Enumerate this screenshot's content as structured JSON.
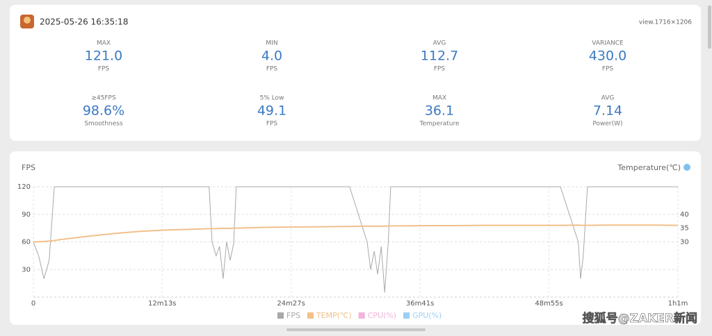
{
  "header": {
    "date": "2025-05-26 16:35:18",
    "view": "view.1716×1206"
  },
  "stats": [
    {
      "label": "MAX",
      "value": "121.0",
      "unit": "FPS"
    },
    {
      "label": "MIN",
      "value": "4.0",
      "unit": "FPS"
    },
    {
      "label": "AVG",
      "value": "112.7",
      "unit": "FPS"
    },
    {
      "label": "VARIANCE",
      "value": "430.0",
      "unit": "FPS"
    },
    {
      "label": "≥45FPS",
      "value": "98.6%",
      "unit": "Smoothness"
    },
    {
      "label": "5% Low",
      "value": "49.1",
      "unit": "FPS"
    },
    {
      "label": "MAX",
      "value": "36.1",
      "unit": "Temperature"
    },
    {
      "label": "AVG",
      "value": "7.14",
      "unit": "Power(W)"
    }
  ],
  "chart_data": {
    "type": "line",
    "y_label": "FPS",
    "y2_label": "Temperature(℃)",
    "x": [
      0,
      30,
      60,
      90,
      119,
      150,
      300,
      450,
      600,
      750,
      900,
      1000,
      1017,
      1040,
      1060,
      1080,
      1100,
      1120,
      1140,
      1155,
      1200,
      1350,
      1500,
      1650,
      1800,
      1900,
      1920,
      1940,
      1960,
      1980,
      2000,
      2020,
      2034,
      2100,
      2250,
      2400,
      2550,
      2700,
      2850,
      3000,
      3102,
      3115,
      3130,
      3154,
      3250,
      3400,
      3550,
      3669
    ],
    "xlim": [
      0,
      3669
    ],
    "xticks": [
      0,
      {
        "value": 733,
        "label": "12m13s"
      },
      {
        "value": 1467,
        "label": "24m27s"
      },
      {
        "value": 2201,
        "label": "36m41s"
      },
      {
        "value": 2935,
        "label": "48m55s"
      },
      {
        "value": 3669,
        "label": "1h1m"
      }
    ],
    "ylim": [
      0,
      120
    ],
    "yticks": [
      30,
      60,
      90,
      120
    ],
    "y2lim": [
      10,
      50
    ],
    "y2ticks": [
      30,
      35,
      40
    ],
    "grid": true,
    "series": [
      {
        "name": "FPS",
        "color": "#a8a8a8",
        "values": [
          60,
          45,
          20,
          40,
          120,
          120,
          120,
          120,
          120,
          120,
          120,
          120,
          60,
          45,
          55,
          20,
          60,
          40,
          58,
          120,
          120,
          120,
          120,
          120,
          120,
          60,
          30,
          50,
          25,
          55,
          5,
          60,
          120,
          120,
          120,
          120,
          120,
          120,
          120,
          120,
          60,
          20,
          45,
          120,
          120,
          120,
          120,
          120
        ]
      },
      {
        "name": "TEMP(℃)",
        "color": "#f2c08a",
        "axis": "y2",
        "values": [
          30,
          30.1,
          30.2,
          30.3,
          30.5,
          30.8,
          32,
          33,
          33.8,
          34.3,
          34.6,
          34.8,
          34.8,
          34.8,
          34.9,
          34.9,
          34.9,
          34.9,
          35,
          35,
          35.1,
          35.3,
          35.4,
          35.5,
          35.6,
          35.7,
          35.7,
          35.7,
          35.7,
          35.7,
          35.7,
          35.7,
          35.8,
          35.8,
          35.9,
          35.9,
          36,
          36,
          36,
          36,
          36.1,
          36,
          36,
          36,
          36.1,
          36.1,
          36.1,
          36
        ]
      },
      {
        "name": "CPU(%)",
        "color": "#f2b3dc",
        "values": [
          null,
          null,
          null,
          null,
          null,
          null,
          null,
          null,
          null,
          null,
          null,
          null,
          null,
          null,
          null,
          null,
          null,
          null,
          null,
          null,
          null,
          null,
          null,
          null,
          null,
          null,
          null,
          null,
          null,
          null,
          null,
          null,
          null,
          null,
          null,
          null,
          null,
          null,
          null,
          null,
          null,
          null,
          null,
          null,
          null,
          null,
          null,
          null
        ]
      },
      {
        "name": "GPU(%)",
        "color": "#9ccff3",
        "values": [
          null,
          null,
          null,
          null,
          null,
          null,
          null,
          null,
          null,
          null,
          null,
          null,
          null,
          null,
          null,
          null,
          null,
          null,
          null,
          null,
          null,
          null,
          null,
          null,
          null,
          null,
          null,
          null,
          null,
          null,
          null,
          null,
          null,
          null,
          null,
          null,
          null,
          null,
          null,
          null,
          null,
          null,
          null,
          null,
          null,
          null,
          null,
          null
        ]
      }
    ]
  },
  "watermark": "搜狐号@ZAKER新闻"
}
